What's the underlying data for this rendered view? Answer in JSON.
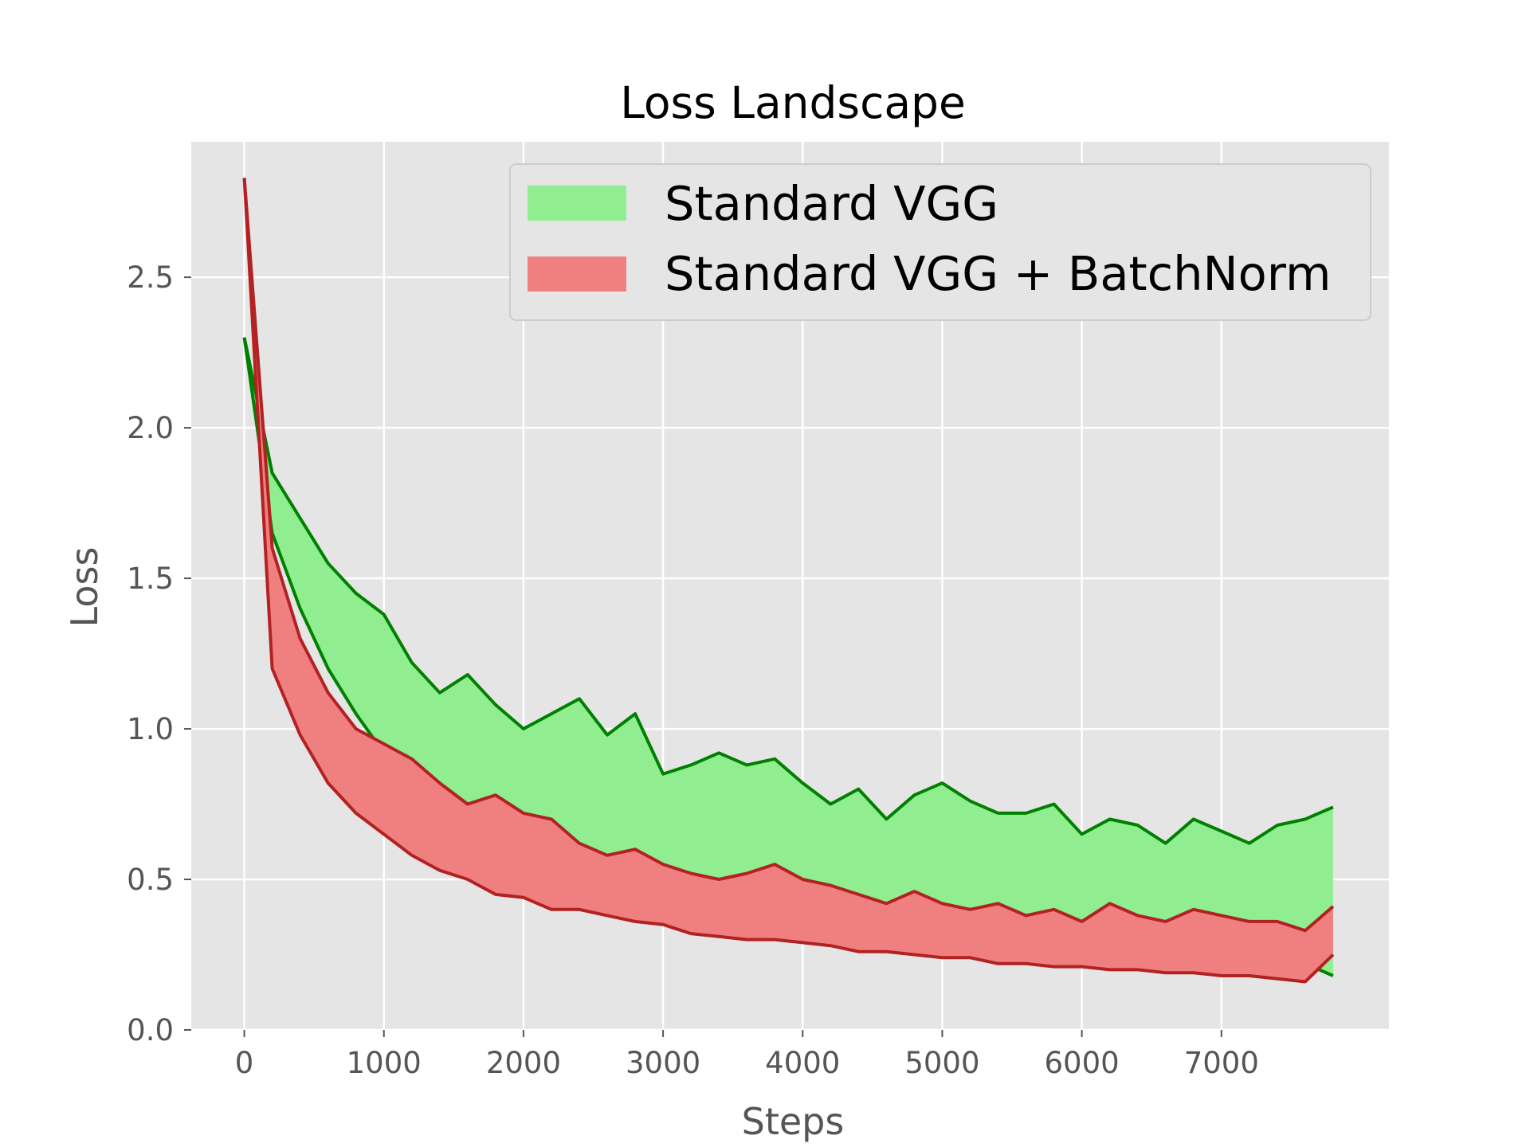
{
  "chart_data": {
    "type": "area",
    "title": "Loss Landscape",
    "xlabel": "Steps",
    "ylabel": "Loss",
    "xlim": [
      -380,
      8200
    ],
    "ylim": [
      0,
      2.95
    ],
    "x_ticks": [
      0,
      1000,
      2000,
      3000,
      4000,
      5000,
      6000,
      7000
    ],
    "x_tick_labels": [
      "0",
      "1000",
      "2000",
      "3000",
      "4000",
      "5000",
      "6000",
      "7000"
    ],
    "y_ticks": [
      0.0,
      0.5,
      1.0,
      1.5,
      2.0,
      2.5
    ],
    "y_tick_labels": [
      "0.0",
      "0.5",
      "1.0",
      "1.5",
      "2.0",
      "2.5"
    ],
    "grid": true,
    "legend_position": "top-right",
    "background": "#e5e5e5",
    "x": [
      0,
      200,
      400,
      600,
      800,
      1000,
      1200,
      1400,
      1600,
      1800,
      2000,
      2200,
      2400,
      2600,
      2800,
      3000,
      3200,
      3400,
      3600,
      3800,
      4000,
      4200,
      4400,
      4600,
      4800,
      5000,
      5200,
      5400,
      5600,
      5800,
      6000,
      6200,
      6400,
      6600,
      6800,
      7000,
      7200,
      7400,
      7600,
      7800
    ],
    "series": [
      {
        "name": "Standard VGG",
        "fill_color": "#90ee90",
        "line_color": "#008000",
        "upper": [
          2.3,
          1.85,
          1.7,
          1.55,
          1.45,
          1.38,
          1.22,
          1.12,
          1.18,
          1.08,
          1.0,
          1.05,
          1.1,
          0.98,
          1.05,
          0.85,
          0.88,
          0.92,
          0.88,
          0.9,
          0.82,
          0.75,
          0.8,
          0.7,
          0.78,
          0.82,
          0.76,
          0.72,
          0.72,
          0.75,
          0.65,
          0.7,
          0.68,
          0.62,
          0.7,
          0.66,
          0.62,
          0.68,
          0.7,
          0.74
        ],
        "lower": [
          2.3,
          1.65,
          1.4,
          1.2,
          1.05,
          0.92,
          0.85,
          0.8,
          0.72,
          0.68,
          0.62,
          0.58,
          0.6,
          0.55,
          0.52,
          0.55,
          0.45,
          0.43,
          0.4,
          0.42,
          0.4,
          0.38,
          0.35,
          0.36,
          0.33,
          0.3,
          0.33,
          0.29,
          0.31,
          0.28,
          0.26,
          0.29,
          0.25,
          0.27,
          0.24,
          0.26,
          0.24,
          0.25,
          0.22,
          0.18
        ]
      },
      {
        "name": "Standard VGG + BatchNorm",
        "fill_color": "#f08080",
        "line_color": "#b22222",
        "upper": [
          2.83,
          1.6,
          1.3,
          1.12,
          1.0,
          0.95,
          0.9,
          0.82,
          0.75,
          0.78,
          0.72,
          0.7,
          0.62,
          0.58,
          0.6,
          0.55,
          0.52,
          0.5,
          0.52,
          0.55,
          0.5,
          0.48,
          0.45,
          0.42,
          0.46,
          0.42,
          0.4,
          0.42,
          0.38,
          0.4,
          0.36,
          0.42,
          0.38,
          0.36,
          0.4,
          0.38,
          0.36,
          0.36,
          0.33,
          0.41
        ],
        "lower": [
          2.83,
          1.2,
          0.98,
          0.82,
          0.72,
          0.65,
          0.58,
          0.53,
          0.5,
          0.45,
          0.44,
          0.4,
          0.4,
          0.38,
          0.36,
          0.35,
          0.32,
          0.31,
          0.3,
          0.3,
          0.29,
          0.28,
          0.26,
          0.26,
          0.25,
          0.24,
          0.24,
          0.22,
          0.22,
          0.21,
          0.21,
          0.2,
          0.2,
          0.19,
          0.19,
          0.18,
          0.18,
          0.17,
          0.16,
          0.25
        ]
      }
    ]
  }
}
